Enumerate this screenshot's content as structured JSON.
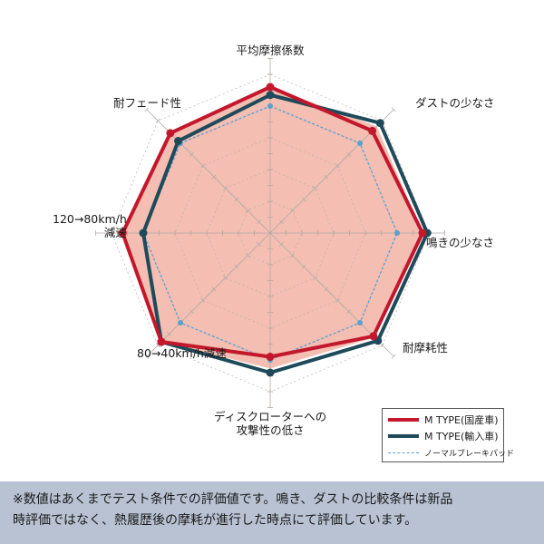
{
  "colors": {
    "m_type_domestic": "#c3172c",
    "m_type_import": "#1f4a5a",
    "normal_pad": "#5aa0d0",
    "fill": "#f0a898",
    "footer_bg": "#b8c2d2"
  },
  "chart_data": {
    "type": "radar",
    "axes": [
      "平均摩擦係数",
      "ダストの少なさ",
      "鳴きの少なさ",
      "耐摩耗性",
      "ディスクローターへの攻撃性の低さ",
      "80→40km/h減速",
      "120→80km/h減速",
      "耐フェード性"
    ],
    "axis_label_lines": [
      [
        "平均摩擦係数"
      ],
      [
        "ダストの少なさ"
      ],
      [
        "鳴きの少なさ"
      ],
      [
        "耐摩耗性"
      ],
      [
        "ディスクローターへの",
        "攻撃性の低さ"
      ],
      [
        "80→40km/h減速"
      ],
      [
        "120→80km/h",
        "減速"
      ],
      [
        "耐フェード性"
      ]
    ],
    "scale_max": 10,
    "rings": 5,
    "grid": true,
    "legend_position": "bottom-right",
    "series": [
      {
        "name": "M TYPE(国産車)",
        "color": "#c3172c",
        "style": "solid",
        "values": [
          9.2,
          9.1,
          9.6,
          9.2,
          7.8,
          9.7,
          9.3,
          8.9
        ]
      },
      {
        "name": "M TYPE(輸入車)",
        "color": "#1f4a5a",
        "style": "solid",
        "values": [
          8.7,
          9.8,
          9.9,
          9.6,
          8.8,
          9.7,
          8.0,
          8.2
        ]
      },
      {
        "name": "ノーマルブレーキパッド",
        "color": "#5aa0d0",
        "style": "dashed",
        "values": [
          8.0,
          8.0,
          8.0,
          8.0,
          8.0,
          8.0,
          8.0,
          8.0
        ]
      }
    ]
  },
  "footer": {
    "line1": "※数値はあくまでテスト条件での評価値です。鳴き、ダストの比較条件は新品",
    "line2": "時評価ではなく、熱履歴後の摩耗が進行した時点にて評価しています。"
  }
}
